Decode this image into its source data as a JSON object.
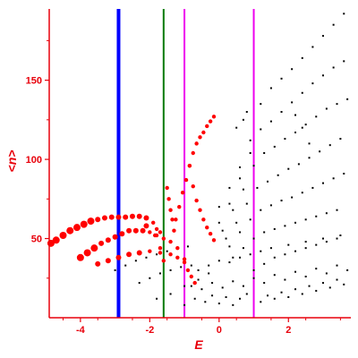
{
  "chart_data": {
    "type": "scatter",
    "xlabel": "E",
    "ylabel": "<n>",
    "xlim": [
      -4.9,
      3.8
    ],
    "ylim": [
      0,
      195
    ],
    "x_ticks": [
      -4,
      -2,
      0,
      2
    ],
    "x_tick_labels": [
      "-4",
      "-2",
      "0",
      "2"
    ],
    "y_ticks": [
      50,
      100,
      150
    ],
    "y_tick_labels": [
      "50",
      "100",
      "150"
    ],
    "grid": false,
    "colors": {
      "axis": "#e8000b",
      "red_series": "#ff0000",
      "black_series": "#000000",
      "line_blue": "#0000ff",
      "line_green": "#007a00",
      "line_magenta": "#ee00ee"
    },
    "vertical_lines": [
      {
        "x": -2.9,
        "color": "#0000ff",
        "width": "thick"
      },
      {
        "x": -1.6,
        "color": "#007a00",
        "width": "normal"
      },
      {
        "x": -1.0,
        "color": "#ee00ee",
        "width": "normal"
      },
      {
        "x": 1.0,
        "color": "#ee00ee",
        "width": "normal"
      }
    ],
    "red_series": [
      [
        -4.85,
        47
      ],
      [
        -4.7,
        49
      ],
      [
        -4.5,
        52
      ],
      [
        -4.3,
        55
      ],
      [
        -4.1,
        57
      ],
      [
        -3.9,
        59
      ],
      [
        -3.7,
        61
      ],
      [
        -3.5,
        62
      ],
      [
        -3.3,
        63
      ],
      [
        -3.1,
        63.5
      ],
      [
        -2.9,
        63.5
      ],
      [
        -2.7,
        63.5
      ],
      [
        -2.5,
        64
      ],
      [
        -2.3,
        64
      ],
      [
        -2.1,
        63
      ],
      [
        -1.9,
        60
      ],
      [
        -1.8,
        56
      ],
      [
        -1.7,
        54
      ],
      [
        -4.0,
        38
      ],
      [
        -3.8,
        41
      ],
      [
        -3.6,
        44
      ],
      [
        -3.4,
        47
      ],
      [
        -3.2,
        49
      ],
      [
        -3.0,
        51
      ],
      [
        -2.8,
        53
      ],
      [
        -2.6,
        55
      ],
      [
        -2.4,
        55
      ],
      [
        -2.2,
        55
      ],
      [
        -2.0,
        54
      ],
      [
        -1.8,
        52
      ],
      [
        -1.6,
        50
      ],
      [
        -1.4,
        48
      ],
      [
        -1.2,
        44
      ],
      [
        -1.0,
        37
      ],
      [
        -3.5,
        34
      ],
      [
        -3.2,
        36
      ],
      [
        -2.9,
        38
      ],
      [
        -2.6,
        40
      ],
      [
        -2.3,
        41
      ],
      [
        -2.0,
        42
      ],
      [
        -1.7,
        41
      ],
      [
        -1.4,
        40
      ],
      [
        -1.2,
        38
      ],
      [
        -1.0,
        35
      ],
      [
        -2.1,
        58
      ],
      [
        -1.85,
        52
      ],
      [
        -1.7,
        44
      ],
      [
        -1.6,
        36
      ],
      [
        -1.25,
        62
      ],
      [
        -1.15,
        70
      ],
      [
        -1.05,
        79
      ],
      [
        -0.95,
        87
      ],
      [
        -0.85,
        96
      ],
      [
        -0.75,
        104
      ],
      [
        -0.65,
        110
      ],
      [
        -0.55,
        114
      ],
      [
        -0.45,
        117
      ],
      [
        -0.35,
        121
      ],
      [
        -0.25,
        124
      ],
      [
        -0.15,
        127
      ],
      [
        -1.5,
        82
      ],
      [
        -1.45,
        75
      ],
      [
        -1.4,
        68
      ],
      [
        -1.35,
        62
      ],
      [
        -1.3,
        55
      ],
      [
        -0.85,
        96
      ],
      [
        -0.75,
        83
      ],
      [
        -0.65,
        74
      ],
      [
        -0.55,
        68
      ],
      [
        -0.45,
        62
      ],
      [
        -0.35,
        57
      ],
      [
        -0.25,
        53
      ],
      [
        -0.15,
        49
      ],
      [
        -0.9,
        30
      ],
      [
        -0.8,
        26
      ],
      [
        -0.7,
        22
      ]
    ],
    "black_series": [
      [
        0.0,
        70
      ],
      [
        0.3,
        82
      ],
      [
        0.6,
        95
      ],
      [
        0.9,
        112
      ],
      [
        1.2,
        135
      ],
      [
        1.5,
        145
      ],
      [
        1.8,
        151
      ],
      [
        2.1,
        157
      ],
      [
        2.4,
        164
      ],
      [
        2.7,
        171
      ],
      [
        3.0,
        178
      ],
      [
        3.3,
        185
      ],
      [
        3.6,
        192
      ],
      [
        0.0,
        60
      ],
      [
        0.3,
        72
      ],
      [
        0.6,
        88
      ],
      [
        0.9,
        104
      ],
      [
        1.2,
        119
      ],
      [
        1.5,
        124
      ],
      [
        1.8,
        130
      ],
      [
        2.1,
        136
      ],
      [
        2.4,
        142
      ],
      [
        2.7,
        148
      ],
      [
        3.0,
        153
      ],
      [
        3.3,
        158
      ],
      [
        3.6,
        162
      ],
      [
        0.1,
        55
      ],
      [
        0.4,
        68
      ],
      [
        0.7,
        81
      ],
      [
        1.0,
        96
      ],
      [
        1.3,
        104
      ],
      [
        1.6,
        108
      ],
      [
        1.9,
        113
      ],
      [
        2.2,
        117
      ],
      [
        2.5,
        122
      ],
      [
        2.8,
        127
      ],
      [
        3.1,
        132
      ],
      [
        3.4,
        135
      ],
      [
        3.7,
        138
      ],
      [
        0.2,
        50
      ],
      [
        0.5,
        60
      ],
      [
        0.8,
        72
      ],
      [
        1.1,
        82
      ],
      [
        1.4,
        86
      ],
      [
        1.7,
        90
      ],
      [
        2.0,
        94
      ],
      [
        2.3,
        97
      ],
      [
        2.6,
        101
      ],
      [
        2.9,
        105
      ],
      [
        3.2,
        109
      ],
      [
        3.5,
        113
      ],
      [
        0.3,
        45
      ],
      [
        0.6,
        54
      ],
      [
        0.9,
        62
      ],
      [
        1.2,
        68
      ],
      [
        1.5,
        71
      ],
      [
        1.8,
        74
      ],
      [
        2.1,
        76
      ],
      [
        2.4,
        79
      ],
      [
        2.7,
        82
      ],
      [
        3.0,
        85
      ],
      [
        3.3,
        88
      ],
      [
        3.6,
        91
      ],
      [
        0.4,
        38
      ],
      [
        0.7,
        44
      ],
      [
        1.0,
        50
      ],
      [
        1.3,
        54
      ],
      [
        1.6,
        56
      ],
      [
        1.9,
        58
      ],
      [
        2.2,
        60
      ],
      [
        2.5,
        62
      ],
      [
        2.8,
        64
      ],
      [
        3.1,
        66
      ],
      [
        3.4,
        68
      ],
      [
        1.0,
        30
      ],
      [
        1.3,
        34
      ],
      [
        1.6,
        38
      ],
      [
        1.9,
        40
      ],
      [
        2.2,
        42
      ],
      [
        2.5,
        44
      ],
      [
        2.8,
        46
      ],
      [
        3.1,
        48
      ],
      [
        3.4,
        50
      ],
      [
        0.5,
        120
      ],
      [
        0.7,
        125
      ],
      [
        0.8,
        130
      ],
      [
        2.2,
        128
      ],
      [
        2.4,
        120
      ],
      [
        2.6,
        110
      ],
      [
        -3.0,
        30
      ],
      [
        -2.7,
        33
      ],
      [
        -2.4,
        36
      ],
      [
        -2.1,
        38
      ],
      [
        -1.8,
        40
      ],
      [
        -1.5,
        42
      ],
      [
        -1.2,
        44
      ],
      [
        -0.9,
        45
      ],
      [
        -2.3,
        22
      ],
      [
        -2.0,
        25
      ],
      [
        -1.7,
        28
      ],
      [
        -1.4,
        30
      ],
      [
        -1.1,
        32
      ],
      [
        -0.8,
        33
      ],
      [
        -1.8,
        12
      ],
      [
        -1.4,
        15
      ],
      [
        -1.0,
        20
      ],
      [
        -0.6,
        24
      ],
      [
        -0.3,
        28
      ],
      [
        -1.0,
        8
      ],
      [
        -0.7,
        12
      ],
      [
        -0.4,
        10
      ],
      [
        -0.2,
        14
      ],
      [
        0.0,
        9
      ],
      [
        0.2,
        13
      ],
      [
        0.4,
        8
      ],
      [
        0.6,
        12
      ],
      [
        0.8,
        15
      ],
      [
        1.2,
        10
      ],
      [
        1.4,
        14
      ],
      [
        1.6,
        12
      ],
      [
        1.8,
        16
      ],
      [
        2.0,
        13
      ],
      [
        2.2,
        18
      ],
      [
        2.4,
        15
      ],
      [
        2.6,
        20
      ],
      [
        2.8,
        17
      ],
      [
        3.0,
        22
      ],
      [
        3.2,
        19
      ],
      [
        3.4,
        24
      ],
      [
        3.6,
        21
      ],
      [
        -0.8,
        20
      ],
      [
        -0.5,
        18
      ],
      [
        -0.2,
        22
      ],
      [
        0.1,
        19
      ],
      [
        0.4,
        23
      ],
      [
        0.7,
        20
      ],
      [
        1.0,
        25
      ],
      [
        1.3,
        22
      ],
      [
        1.6,
        27
      ],
      [
        1.9,
        24
      ],
      [
        2.2,
        29
      ],
      [
        2.5,
        26
      ],
      [
        2.8,
        31
      ],
      [
        3.1,
        28
      ],
      [
        3.4,
        33
      ],
      [
        3.7,
        30
      ],
      [
        -0.6,
        30
      ],
      [
        -0.3,
        33
      ],
      [
        0.0,
        36
      ],
      [
        0.3,
        35
      ],
      [
        0.6,
        38
      ],
      [
        0.9,
        40
      ],
      [
        1.2,
        42
      ],
      [
        1.5,
        44
      ],
      [
        2.0,
        46
      ],
      [
        2.5,
        48
      ],
      [
        3.0,
        50
      ],
      [
        3.5,
        52
      ]
    ]
  }
}
